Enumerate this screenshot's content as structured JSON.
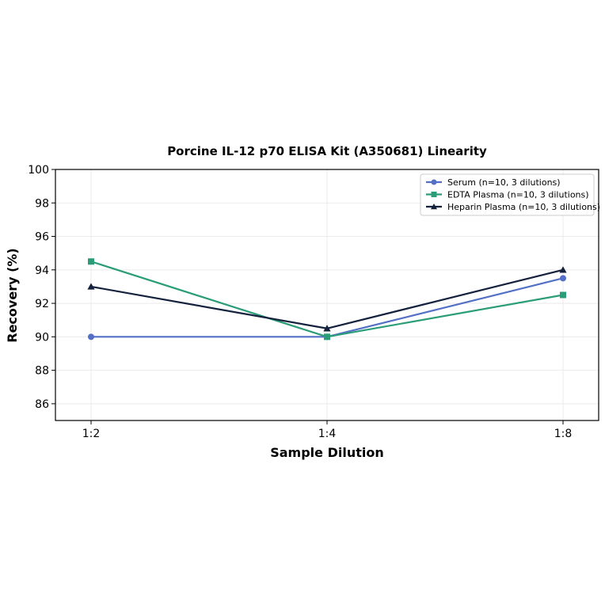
{
  "chart_data": {
    "type": "line",
    "title": "Porcine IL-12 p70 ELISA Kit (A350681) Linearity",
    "xlabel": "Sample Dilution",
    "ylabel": "Recovery (%)",
    "categories": [
      "1:2",
      "1:4",
      "1:8"
    ],
    "ylim": [
      85,
      100
    ],
    "yticks": [
      86,
      88,
      90,
      92,
      94,
      96,
      98,
      100
    ],
    "grid": true,
    "legend_position": "top-right",
    "series": [
      {
        "name": "Serum (n=10, 3 dilutions)",
        "values": [
          90.0,
          90.0,
          93.5
        ],
        "color": "#5470C6",
        "marker": "circle"
      },
      {
        "name": "EDTA Plasma (n=10, 3 dilutions)",
        "values": [
          94.5,
          90.0,
          92.5
        ],
        "color": "#2A9D78",
        "marker": "square"
      },
      {
        "name": "Heparin Plasma (n=10, 3 dilutions)",
        "values": [
          93.0,
          90.5,
          94.0
        ],
        "color": "#14213D",
        "marker": "triangle"
      }
    ]
  }
}
